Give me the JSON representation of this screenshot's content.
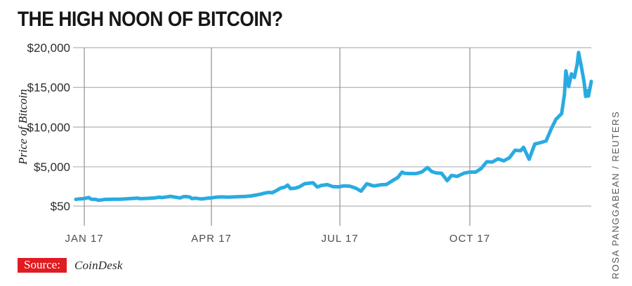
{
  "header": {
    "title": "THE HIGH NOON OF BITCOIN?"
  },
  "chart_data": {
    "type": "line",
    "title": "THE HIGH NOON OF BITCOIN?",
    "ylabel": "Price of Bitcoin",
    "xlabel": "",
    "grid": true,
    "line_color": "#29abe2",
    "ylim": [
      50,
      20000
    ],
    "x_range_days": [
      0,
      365
    ],
    "y_ticks": [
      {
        "value": 20000,
        "label": "$20,000"
      },
      {
        "value": 15000,
        "label": "$15,000"
      },
      {
        "value": 10000,
        "label": "$10,000"
      },
      {
        "value": 5000,
        "label": "$5,000"
      },
      {
        "value": 50,
        "label": "$50"
      }
    ],
    "x_ticks": [
      {
        "day": 6,
        "label": "JAN 17"
      },
      {
        "day": 96,
        "label": "APR 17"
      },
      {
        "day": 187,
        "label": "JUL 17"
      },
      {
        "day": 279,
        "label": "OCT 17"
      }
    ],
    "points": [
      [
        0,
        900
      ],
      [
        3,
        960
      ],
      [
        6,
        1000
      ],
      [
        9,
        1130
      ],
      [
        11,
        905
      ],
      [
        14,
        895
      ],
      [
        16,
        780
      ],
      [
        18,
        825
      ],
      [
        21,
        900
      ],
      [
        24,
        895
      ],
      [
        27,
        920
      ],
      [
        31,
        915
      ],
      [
        36,
        965
      ],
      [
        40,
        1010
      ],
      [
        44,
        1055
      ],
      [
        45,
        985
      ],
      [
        48,
        1000
      ],
      [
        52,
        1030
      ],
      [
        56,
        1080
      ],
      [
        59,
        1170
      ],
      [
        61,
        1120
      ],
      [
        65,
        1220
      ],
      [
        67,
        1280
      ],
      [
        71,
        1150
      ],
      [
        74,
        1070
      ],
      [
        76,
        1230
      ],
      [
        78,
        1250
      ],
      [
        81,
        1170
      ],
      [
        82,
        1000
      ],
      [
        85,
        1040
      ],
      [
        89,
        940
      ],
      [
        93,
        1040
      ],
      [
        96,
        1085
      ],
      [
        100,
        1190
      ],
      [
        104,
        1210
      ],
      [
        108,
        1180
      ],
      [
        112,
        1205
      ],
      [
        116,
        1240
      ],
      [
        120,
        1270
      ],
      [
        124,
        1330
      ],
      [
        128,
        1450
      ],
      [
        131,
        1560
      ],
      [
        134,
        1700
      ],
      [
        137,
        1770
      ],
      [
        139,
        1730
      ],
      [
        142,
        2000
      ],
      [
        145,
        2320
      ],
      [
        148,
        2440
      ],
      [
        150,
        2700
      ],
      [
        152,
        2250
      ],
      [
        155,
        2300
      ],
      [
        158,
        2450
      ],
      [
        162,
        2870
      ],
      [
        166,
        2950
      ],
      [
        168,
        2980
      ],
      [
        171,
        2450
      ],
      [
        174,
        2650
      ],
      [
        178,
        2750
      ],
      [
        182,
        2500
      ],
      [
        186,
        2480
      ],
      [
        190,
        2600
      ],
      [
        194,
        2560
      ],
      [
        198,
        2330
      ],
      [
        202,
        1930
      ],
      [
        206,
        2860
      ],
      [
        211,
        2580
      ],
      [
        216,
        2730
      ],
      [
        220,
        2780
      ],
      [
        224,
        3230
      ],
      [
        228,
        3650
      ],
      [
        231,
        4330
      ],
      [
        233,
        4160
      ],
      [
        237,
        4150
      ],
      [
        241,
        4150
      ],
      [
        245,
        4350
      ],
      [
        249,
        4900
      ],
      [
        252,
        4400
      ],
      [
        255,
        4230
      ],
      [
        259,
        4170
      ],
      [
        263,
        3250
      ],
      [
        266,
        3920
      ],
      [
        270,
        3790
      ],
      [
        275,
        4200
      ],
      [
        279,
        4340
      ],
      [
        283,
        4320
      ],
      [
        287,
        4770
      ],
      [
        291,
        5640
      ],
      [
        295,
        5600
      ],
      [
        299,
        6000
      ],
      [
        303,
        5750
      ],
      [
        307,
        6130
      ],
      [
        311,
        7080
      ],
      [
        315,
        7020
      ],
      [
        317,
        7460
      ],
      [
        321,
        5950
      ],
      [
        325,
        7870
      ],
      [
        329,
        8040
      ],
      [
        333,
        8250
      ],
      [
        337,
        9910
      ],
      [
        340,
        10980
      ],
      [
        344,
        11690
      ],
      [
        345,
        12900
      ],
      [
        346,
        14100
      ],
      [
        347,
        17080
      ],
      [
        348,
        16200
      ],
      [
        349,
        15100
      ],
      [
        351,
        16700
      ],
      [
        353,
        16250
      ],
      [
        355,
        17900
      ],
      [
        356,
        19400
      ],
      [
        358,
        17600
      ],
      [
        360,
        15600
      ],
      [
        361,
        13850
      ],
      [
        362,
        14600
      ],
      [
        363,
        13900
      ],
      [
        365,
        15750
      ]
    ]
  },
  "footer": {
    "source_label": "Source:",
    "source_name": "CoinDesk"
  },
  "credit": "ROSA PANGGABEAN / REUTERS",
  "colors": {
    "line": "#29abe2",
    "grid_horizontal": "#b3b3b3",
    "grid_vertical": "#919191",
    "source_box": "#e11b22"
  }
}
